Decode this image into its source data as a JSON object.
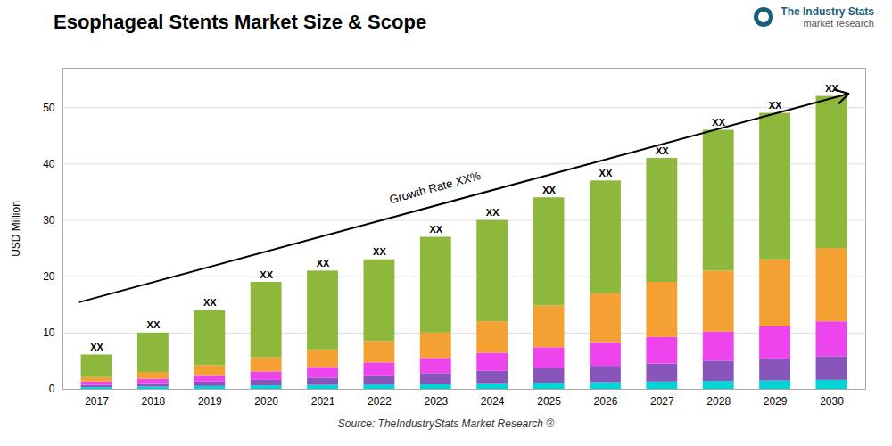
{
  "chart_data": {
    "type": "bar",
    "stacked": true,
    "title": "Esophageal Stents Market Size & Scope",
    "ylabel": "USD Million",
    "categories": [
      "2017",
      "2018",
      "2019",
      "2020",
      "2021",
      "2022",
      "2023",
      "2024",
      "2025",
      "2026",
      "2027",
      "2028",
      "2029",
      "2030"
    ],
    "series": [
      {
        "color": "#00D4D4",
        "values": [
          0.3,
          0.4,
          0.5,
          0.6,
          0.7,
          0.8,
          0.9,
          1.0,
          1.1,
          1.2,
          1.3,
          1.4,
          1.5,
          1.6
        ]
      },
      {
        "color": "#8855BB",
        "values": [
          0.4,
          0.6,
          0.8,
          1.0,
          1.3,
          1.6,
          1.9,
          2.2,
          2.6,
          2.9,
          3.2,
          3.6,
          3.9,
          4.2
        ]
      },
      {
        "color": "#EE44EE",
        "values": [
          0.6,
          0.8,
          1.1,
          1.5,
          1.9,
          2.3,
          2.7,
          3.2,
          3.7,
          4.2,
          4.7,
          5.2,
          5.7,
          6.2
        ]
      },
      {
        "color": "#F5A033",
        "values": [
          0.8,
          1.2,
          1.8,
          2.5,
          3.1,
          3.8,
          4.5,
          5.6,
          7.4,
          8.7,
          9.8,
          10.8,
          11.9,
          13.0
        ]
      },
      {
        "color": "#8DB83C",
        "values": [
          4.0,
          7.0,
          9.8,
          13.4,
          14.0,
          14.5,
          17.0,
          18.0,
          19.2,
          20.0,
          22.0,
          25.0,
          26.0,
          27.0
        ]
      }
    ],
    "ylim": [
      0,
      57
    ],
    "yticks": [
      0,
      10,
      20,
      30,
      40,
      50
    ],
    "grid": true,
    "bar_label": "XX",
    "arrow": {
      "text": "Growth Rate XX%",
      "y_start": 15.5,
      "y_end": 52.5
    },
    "source": "Source: TheIndustryStats Market Research ®",
    "logo": [
      "The Industry Stats",
      "market research"
    ]
  }
}
